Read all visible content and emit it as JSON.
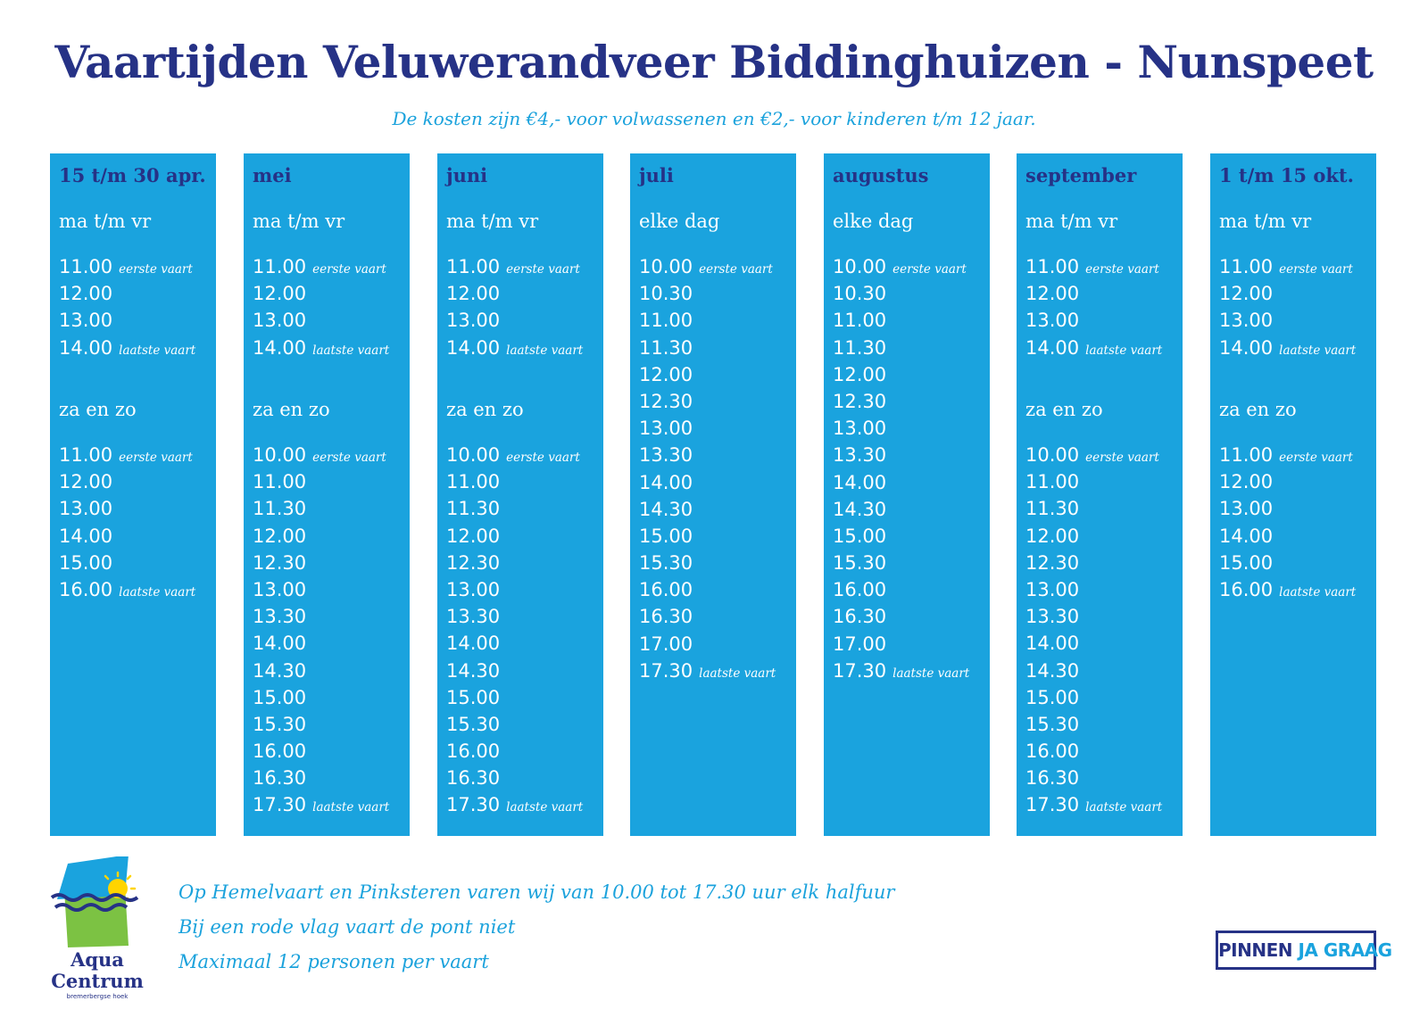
{
  "title": "Vaartijden Veluwerandveer Biddinghuizen - Nunspeet",
  "subtitle": "De kosten zijn €4,- voor volwassenen en €2,- voor kinderen t/m 12 jaar.",
  "columns": [
    {
      "header": "15 t/m 30 apr.",
      "sections": [
        {
          "label": "ma t/m vr",
          "times": [
            {
              "time": "11.00",
              "note": "eerste vaart"
            },
            {
              "time": "12.00",
              "note": ""
            },
            {
              "time": "13.00",
              "note": ""
            },
            {
              "time": "14.00",
              "note": "laatste vaart"
            }
          ]
        },
        {
          "label": "za en zo",
          "times": [
            {
              "time": "11.00",
              "note": "eerste vaart"
            },
            {
              "time": "12.00",
              "note": ""
            },
            {
              "time": "13.00",
              "note": ""
            },
            {
              "time": "14.00",
              "note": ""
            },
            {
              "time": "15.00",
              "note": ""
            },
            {
              "time": "16.00",
              "note": "laatste vaart"
            }
          ]
        }
      ]
    },
    {
      "header": "mei",
      "sections": [
        {
          "label": "ma t/m vr",
          "times": [
            {
              "time": "11.00",
              "note": "eerste vaart"
            },
            {
              "time": "12.00",
              "note": ""
            },
            {
              "time": "13.00",
              "note": ""
            },
            {
              "time": "14.00",
              "note": "laatste vaart"
            }
          ]
        },
        {
          "label": "za en zo",
          "times": [
            {
              "time": "10.00",
              "note": "eerste vaart"
            },
            {
              "time": "11.00",
              "note": ""
            },
            {
              "time": "11.30",
              "note": ""
            },
            {
              "time": "12.00",
              "note": ""
            },
            {
              "time": "12.30",
              "note": ""
            },
            {
              "time": "13.00",
              "note": ""
            },
            {
              "time": "13.30",
              "note": ""
            },
            {
              "time": "14.00",
              "note": ""
            },
            {
              "time": "14.30",
              "note": ""
            },
            {
              "time": "15.00",
              "note": ""
            },
            {
              "time": "15.30",
              "note": ""
            },
            {
              "time": "16.00",
              "note": ""
            },
            {
              "time": "16.30",
              "note": ""
            },
            {
              "time": "17.30",
              "note": "laatste vaart"
            }
          ]
        }
      ]
    },
    {
      "header": "juni",
      "sections": [
        {
          "label": "ma t/m vr",
          "times": [
            {
              "time": "11.00",
              "note": "eerste vaart"
            },
            {
              "time": "12.00",
              "note": ""
            },
            {
              "time": "13.00",
              "note": ""
            },
            {
              "time": "14.00",
              "note": "laatste vaart"
            }
          ]
        },
        {
          "label": "za en zo",
          "times": [
            {
              "time": "10.00",
              "note": "eerste vaart"
            },
            {
              "time": "11.00",
              "note": ""
            },
            {
              "time": "11.30",
              "note": ""
            },
            {
              "time": "12.00",
              "note": ""
            },
            {
              "time": "12.30",
              "note": ""
            },
            {
              "time": "13.00",
              "note": ""
            },
            {
              "time": "13.30",
              "note": ""
            },
            {
              "time": "14.00",
              "note": ""
            },
            {
              "time": "14.30",
              "note": ""
            },
            {
              "time": "15.00",
              "note": ""
            },
            {
              "time": "15.30",
              "note": ""
            },
            {
              "time": "16.00",
              "note": ""
            },
            {
              "time": "16.30",
              "note": ""
            },
            {
              "time": "17.30",
              "note": "laatste vaart"
            }
          ]
        }
      ]
    },
    {
      "header": "juli",
      "sections": [
        {
          "label": "elke dag",
          "times": [
            {
              "time": "10.00",
              "note": "eerste vaart"
            },
            {
              "time": "10.30",
              "note": ""
            },
            {
              "time": "11.00",
              "note": ""
            },
            {
              "time": "11.30",
              "note": ""
            },
            {
              "time": "12.00",
              "note": ""
            },
            {
              "time": "12.30",
              "note": ""
            },
            {
              "time": "13.00",
              "note": ""
            },
            {
              "time": "13.30",
              "note": ""
            },
            {
              "time": "14.00",
              "note": ""
            },
            {
              "time": "14.30",
              "note": ""
            },
            {
              "time": "15.00",
              "note": ""
            },
            {
              "time": "15.30",
              "note": ""
            },
            {
              "time": "16.00",
              "note": ""
            },
            {
              "time": "16.30",
              "note": ""
            },
            {
              "time": "17.00",
              "note": ""
            },
            {
              "time": "17.30",
              "note": "laatste vaart"
            }
          ]
        }
      ]
    },
    {
      "header": "augustus",
      "sections": [
        {
          "label": "elke dag",
          "times": [
            {
              "time": "10.00",
              "note": "eerste vaart"
            },
            {
              "time": "10.30",
              "note": ""
            },
            {
              "time": "11.00",
              "note": ""
            },
            {
              "time": "11.30",
              "note": ""
            },
            {
              "time": "12.00",
              "note": ""
            },
            {
              "time": "12.30",
              "note": ""
            },
            {
              "time": "13.00",
              "note": ""
            },
            {
              "time": "13.30",
              "note": ""
            },
            {
              "time": "14.00",
              "note": ""
            },
            {
              "time": "14.30",
              "note": ""
            },
            {
              "time": "15.00",
              "note": ""
            },
            {
              "time": "15.30",
              "note": ""
            },
            {
              "time": "16.00",
              "note": ""
            },
            {
              "time": "16.30",
              "note": ""
            },
            {
              "time": "17.00",
              "note": ""
            },
            {
              "time": "17.30",
              "note": "laatste vaart"
            }
          ]
        }
      ]
    },
    {
      "header": "september",
      "sections": [
        {
          "label": "ma t/m vr",
          "times": [
            {
              "time": "11.00",
              "note": "eerste vaart"
            },
            {
              "time": "12.00",
              "note": ""
            },
            {
              "time": "13.00",
              "note": ""
            },
            {
              "time": "14.00",
              "note": "laatste vaart"
            }
          ]
        },
        {
          "label": "za en zo",
          "times": [
            {
              "time": "10.00",
              "note": "eerste vaart"
            },
            {
              "time": "11.00",
              "note": ""
            },
            {
              "time": "11.30",
              "note": ""
            },
            {
              "time": "12.00",
              "note": ""
            },
            {
              "time": "12.30",
              "note": ""
            },
            {
              "time": "13.00",
              "note": ""
            },
            {
              "time": "13.30",
              "note": ""
            },
            {
              "time": "14.00",
              "note": ""
            },
            {
              "time": "14.30",
              "note": ""
            },
            {
              "time": "15.00",
              "note": ""
            },
            {
              "time": "15.30",
              "note": ""
            },
            {
              "time": "16.00",
              "note": ""
            },
            {
              "time": "16.30",
              "note": ""
            },
            {
              "time": "17.30",
              "note": "laatste vaart"
            }
          ]
        }
      ]
    },
    {
      "header": "1 t/m 15 okt.",
      "sections": [
        {
          "label": "ma t/m vr",
          "times": [
            {
              "time": "11.00",
              "note": "eerste vaart"
            },
            {
              "time": "12.00",
              "note": ""
            },
            {
              "time": "13.00",
              "note": ""
            },
            {
              "time": "14.00",
              "note": "laatste vaart"
            }
          ]
        },
        {
          "label": "za en zo",
          "times": [
            {
              "time": "11.00",
              "note": "eerste vaart"
            },
            {
              "time": "12.00",
              "note": ""
            },
            {
              "time": "13.00",
              "note": ""
            },
            {
              "time": "14.00",
              "note": ""
            },
            {
              "time": "15.00",
              "note": ""
            },
            {
              "time": "16.00",
              "note": "laatste vaart"
            }
          ]
        }
      ]
    }
  ],
  "footnotes": [
    "Op Hemelvaart en Pinksteren varen wij van 10.00 tot 17.30 uur elk halfuur",
    "Bij een rode vlag vaart de pont niet",
    "Maximaal 12 personen per vaart"
  ],
  "logo": {
    "line1": "Aqua",
    "line2": "Centrum",
    "tagline": "bremerbergse hoek"
  },
  "payment_badge": {
    "part1": "PINNEN",
    "part2": "JA GRAAG"
  },
  "colors": {
    "navy": "#263286",
    "column_blue": "#1aa3de",
    "light_blue_text": "#1ba2dc",
    "logo_green": "#7cc243",
    "sun_yellow": "#ffd400"
  }
}
